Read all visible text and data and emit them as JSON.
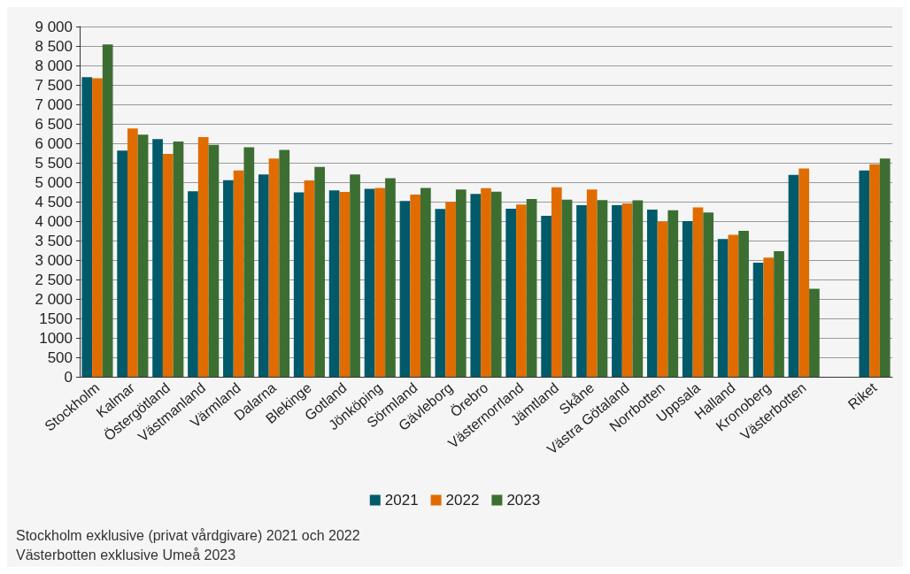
{
  "chart_data": {
    "type": "bar",
    "categories": [
      "Stockholm",
      "Kalmar",
      "Östergötland",
      "Västmanland",
      "Värmland",
      "Dalarna",
      "Blekinge",
      "Gotland",
      "Jönköping",
      "Sörmland",
      "Gävleborg",
      "Örebro",
      "Västernorrland",
      "Jämtland",
      "Skåne",
      "Västra Götaland",
      "Norrbotten",
      "Uppsala",
      "Halland",
      "Kronoberg",
      "Västerbotten",
      null,
      "Riket"
    ],
    "series": [
      {
        "name": "2021",
        "color": "#005a6a",
        "values": [
          7700,
          5810,
          6110,
          4765,
          5050,
          5200,
          4740,
          4790,
          4830,
          4515,
          4310,
          4700,
          4320,
          4135,
          4410,
          4410,
          4295,
          4000,
          3540,
          2930,
          5185,
          null,
          5300
        ]
      },
      {
        "name": "2022",
        "color": "#e06c00",
        "values": [
          7670,
          6380,
          5730,
          6160,
          5300,
          5610,
          5045,
          4750,
          4850,
          4680,
          4495,
          4845,
          4425,
          4870,
          4810,
          4455,
          3990,
          4350,
          3645,
          3060,
          5350,
          null,
          5460
        ]
      },
      {
        "name": "2023",
        "color": "#3c6e32",
        "values": [
          8540,
          6220,
          6045,
          5960,
          5900,
          5830,
          5390,
          5200,
          5105,
          4855,
          4815,
          4755,
          4570,
          4550,
          4540,
          4535,
          4280,
          4220,
          3750,
          3225,
          2260,
          null,
          5610
        ]
      }
    ],
    "ylim": [
      0,
      9000
    ],
    "yticks": [
      0,
      500,
      1000,
      1500,
      {
        "value": 2000,
        "label": "2 000"
      },
      {
        "value": 2500,
        "label": "2 500"
      },
      {
        "value": 3000,
        "label": "3 000"
      },
      {
        "value": 3500,
        "label": "3 500"
      },
      {
        "value": 4000,
        "label": "4 000"
      },
      {
        "value": 4500,
        "label": "4 500"
      },
      {
        "value": 5000,
        "label": "5 000"
      },
      {
        "value": 5500,
        "label": "5 500"
      },
      {
        "value": 6000,
        "label": "6 000"
      },
      {
        "value": 6500,
        "label": "6 500"
      },
      {
        "value": 7000,
        "label": "7 000"
      },
      {
        "value": 7500,
        "label": "7 500"
      },
      {
        "value": 8000,
        "label": "8 000"
      },
      {
        "value": 8500,
        "label": "8 500"
      },
      {
        "value": 9000,
        "label": "9 000"
      }
    ],
    "grid": "y",
    "legend": "bottom",
    "annotations": [
      "Stockholm exklusive (privat vårdgivare) 2021 och 2022",
      "Västerbotten exklusive Umeå 2023"
    ]
  }
}
